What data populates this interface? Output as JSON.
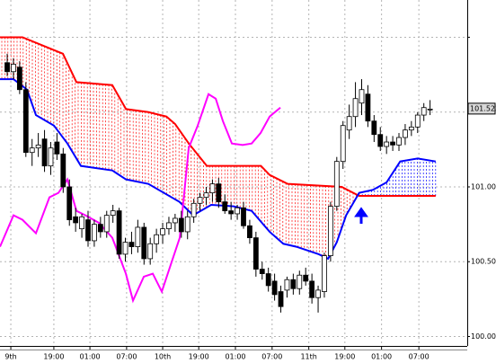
{
  "chart_data": {
    "type": "candlestick",
    "xlim": [
      -1.16,
      73.98
    ],
    "ylim": [
      99.937,
      102.249
    ],
    "grid": true,
    "xticks": [
      {
        "value": 0.58,
        "label": "9th"
      },
      {
        "value": 7.5,
        "label": "19:00"
      },
      {
        "value": 13.3,
        "label": "01:00"
      },
      {
        "value": 19.2,
        "label": "07:00"
      },
      {
        "value": 25.0,
        "label": "10th"
      },
      {
        "value": 30.8,
        "label": "19:00"
      },
      {
        "value": 36.7,
        "label": "01:00"
      },
      {
        "value": 42.6,
        "label": "07:00"
      },
      {
        "value": 48.5,
        "label": "11th"
      },
      {
        "value": 54.3,
        "label": "19:00"
      },
      {
        "value": 60.2,
        "label": "01:00"
      },
      {
        "value": 66.2,
        "label": "07:00"
      }
    ],
    "yticks": [
      {
        "value": 100.0,
        "label": "100.000"
      },
      {
        "value": 100.5,
        "label": "100.500"
      },
      {
        "value": 101.0,
        "label": "101.000"
      },
      {
        "value": 101.5,
        "label": null
      },
      {
        "value": 102.0,
        "label": null
      }
    ],
    "last_price": 101.523,
    "up_color": "#ffffff",
    "down_color": "#000000",
    "open": [
      101.83,
      101.77,
      101.8,
      101.65,
      101.23,
      101.26,
      101.32,
      101.14,
      101.3,
      101.22,
      101.0,
      100.8,
      100.72,
      100.78,
      100.64,
      100.75,
      100.7,
      100.81,
      100.84,
      100.55,
      100.63,
      100.6,
      100.73,
      100.52,
      100.62,
      100.68,
      100.72,
      100.76,
      100.79,
      100.7,
      100.8,
      100.89,
      100.93,
      100.96,
      101.02,
      100.9,
      100.84,
      100.82,
      100.86,
      100.74,
      100.66,
      100.45,
      100.42,
      100.37,
      100.3,
      100.31,
      100.38,
      100.32,
      100.41,
      100.37,
      100.26,
      100.3,
      100.54,
      100.87,
      101.17,
      101.38,
      101.47,
      101.56,
      101.62,
      101.44,
      101.35,
      101.27,
      101.3,
      101.28,
      101.33,
      101.38,
      101.4,
      101.48,
      101.52
    ],
    "high": [
      101.89,
      101.86,
      101.84,
      101.7,
      101.32,
      101.36,
      101.38,
      101.3,
      101.36,
      101.26,
      101.05,
      100.86,
      100.82,
      100.84,
      100.78,
      100.8,
      100.84,
      100.88,
      100.86,
      100.66,
      100.7,
      100.78,
      100.76,
      100.66,
      100.72,
      100.76,
      100.8,
      100.82,
      100.84,
      100.84,
      100.92,
      100.96,
      101.0,
      101.05,
      101.06,
      100.95,
      100.9,
      100.88,
      100.9,
      100.78,
      100.7,
      100.5,
      100.46,
      100.42,
      100.34,
      100.4,
      100.42,
      100.44,
      100.46,
      100.42,
      100.34,
      100.56,
      100.9,
      101.2,
      101.44,
      101.55,
      101.7,
      101.72,
      101.68,
      101.48,
      101.4,
      101.34,
      101.34,
      101.36,
      101.42,
      101.44,
      101.5,
      101.56,
      101.58
    ],
    "low": [
      101.74,
      101.72,
      101.62,
      101.2,
      101.14,
      101.2,
      101.1,
      101.08,
      101.18,
      100.96,
      100.74,
      100.7,
      100.66,
      100.6,
      100.6,
      100.66,
      100.66,
      100.76,
      100.52,
      100.5,
      100.55,
      100.56,
      100.48,
      100.48,
      100.56,
      100.62,
      100.68,
      100.7,
      100.66,
      100.65,
      100.76,
      100.84,
      100.88,
      100.9,
      100.86,
      100.82,
      100.78,
      100.78,
      100.72,
      100.62,
      100.4,
      100.38,
      100.3,
      100.24,
      100.16,
      100.26,
      100.28,
      100.28,
      100.34,
      100.22,
      100.16,
      100.26,
      100.5,
      100.84,
      101.12,
      101.32,
      101.4,
      101.48,
      101.4,
      101.3,
      101.24,
      101.22,
      101.24,
      101.24,
      101.28,
      101.34,
      101.36,
      101.44,
      101.48
    ],
    "close": [
      101.77,
      101.82,
      101.65,
      101.23,
      101.26,
      101.28,
      101.14,
      101.26,
      101.22,
      101.0,
      100.78,
      100.76,
      100.8,
      100.64,
      100.75,
      100.7,
      100.81,
      100.84,
      100.55,
      100.63,
      100.6,
      100.73,
      100.52,
      100.62,
      100.68,
      100.72,
      100.76,
      100.79,
      100.7,
      100.8,
      100.89,
      100.93,
      100.96,
      101.02,
      100.9,
      100.84,
      100.82,
      100.86,
      100.74,
      100.66,
      100.45,
      100.42,
      100.34,
      100.28,
      100.2,
      100.38,
      100.32,
      100.41,
      100.37,
      100.26,
      100.31,
      100.54,
      100.87,
      101.17,
      101.41,
      101.47,
      101.59,
      101.65,
      101.44,
      101.35,
      101.27,
      101.3,
      101.28,
      101.33,
      101.38,
      101.4,
      101.48,
      101.53,
      101.52
    ],
    "series": [
      {
        "color": "#ff0000",
        "x": [
          -1.16,
          2.46,
          8.96,
          11.13,
          16.9,
          19.1,
          22.7,
          25.6,
          27.0,
          29.2,
          32.1,
          40.8,
          42.2,
          45.1,
          53.8,
          56.6,
          68.9
        ],
        "values": [
          102.0,
          102.0,
          101.89,
          101.7,
          101.68,
          101.52,
          101.5,
          101.47,
          101.42,
          101.29,
          101.14,
          101.14,
          101.08,
          101.02,
          101.0,
          100.94,
          100.94
        ]
      },
      {
        "color": "#0000ff",
        "x": [
          -1.16,
          1.01,
          3.18,
          4.62,
          7.51,
          9.68,
          11.85,
          16.9,
          19.1,
          22.7,
          27.7,
          29.9,
          32.8,
          36.4,
          39.3,
          42.2,
          44.4,
          46.5,
          50.1,
          51.6,
          53.0,
          54.5,
          56.6,
          58.8,
          61.0,
          63.2,
          66.0,
          68.9
        ],
        "values": [
          101.72,
          101.72,
          101.65,
          101.48,
          101.41,
          101.29,
          101.14,
          101.11,
          101.05,
          101.02,
          100.9,
          100.81,
          100.88,
          100.87,
          100.84,
          100.7,
          100.62,
          100.6,
          100.55,
          100.52,
          100.63,
          100.81,
          100.96,
          100.98,
          101.03,
          101.17,
          101.19,
          101.17
        ]
      },
      {
        "color": "#ff00ff",
        "x": [
          -1.16,
          1.01,
          2.46,
          4.62,
          6.79,
          8.24,
          9.68,
          11.13,
          12.57,
          14.74,
          16.9,
          19.08,
          20.23,
          21.97,
          23.41,
          24.86,
          26.3,
          27.75,
          29.19,
          30.64,
          32.37,
          33.53,
          34.68,
          36.13,
          37.86,
          39.31,
          40.75,
          42.2,
          43.93
        ],
        "values": [
          100.6,
          100.81,
          100.78,
          100.69,
          100.93,
          100.96,
          101.05,
          100.84,
          100.81,
          100.76,
          100.66,
          100.42,
          100.24,
          100.4,
          100.42,
          100.3,
          100.48,
          100.66,
          101.26,
          101.41,
          101.62,
          101.59,
          101.44,
          101.29,
          101.28,
          101.29,
          101.36,
          101.47,
          101.53
        ]
      }
    ]
  }
}
